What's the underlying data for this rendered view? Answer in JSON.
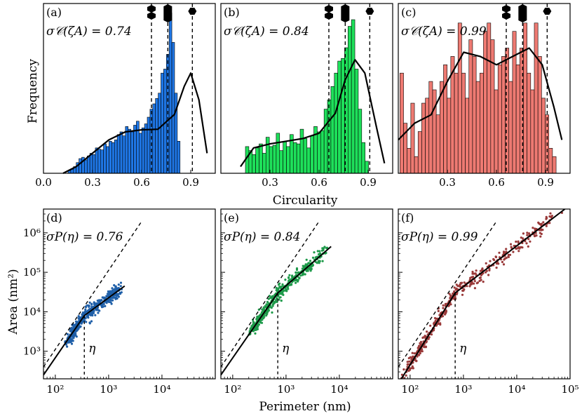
{
  "figure": {
    "xlabel_top": "Circularity",
    "ylabel_top": "Frequency",
    "xlabel_bottom": "Perimeter (nm)",
    "ylabel_bottom": "Area (nm²)",
    "shape_icons": [
      "triangle-icon",
      "square-icon",
      "hexagon-icon"
    ]
  },
  "chart_data": [
    {
      "type": "bar",
      "panel": "(a)",
      "annotation": "σ𝒞(ζA) = 0.74",
      "color": "#1f77e6",
      "xlim": [
        0.0,
        1.05
      ],
      "xticks": [
        "0.0",
        "0.3",
        "0.6",
        "0.9"
      ],
      "bin_start": 0.15,
      "bin_width": 0.0167,
      "values": [
        4,
        6,
        10,
        16,
        22,
        24,
        20,
        26,
        30,
        28,
        38,
        36,
        35,
        44,
        40,
        48,
        46,
        50,
        58,
        62,
        56,
        70,
        66,
        62,
        72,
        78,
        60,
        68,
        74,
        84,
        96,
        104,
        112,
        120,
        150,
        156,
        178,
        240,
        196,
        120,
        48
      ],
      "kde_x": [
        0.12,
        0.2,
        0.3,
        0.4,
        0.5,
        0.6,
        0.7,
        0.8,
        0.86,
        0.9,
        0.95,
        1.0
      ],
      "kde_y": [
        0,
        10,
        30,
        50,
        62,
        65,
        66,
        88,
        130,
        150,
        110,
        30
      ],
      "ymax": 250,
      "vlines": [
        0.66,
        0.76,
        0.91
      ]
    },
    {
      "type": "bar",
      "panel": "(b)",
      "annotation": "σ𝒞(ζA) = 0.84",
      "color": "#1ee05a",
      "xlim": [
        0.0,
        1.05
      ],
      "xticks": [
        "0.3",
        "0.6",
        "0.9"
      ],
      "bin_start": 0.15,
      "bin_width": 0.0209,
      "values": [
        40,
        34,
        28,
        38,
        44,
        30,
        54,
        40,
        42,
        60,
        34,
        48,
        40,
        58,
        46,
        44,
        66,
        52,
        38,
        56,
        70,
        62,
        64,
        96,
        110,
        130,
        150,
        168,
        172,
        188,
        220,
        230,
        156,
        96,
        46,
        18
      ],
      "kde_x": [
        0.12,
        0.2,
        0.3,
        0.4,
        0.5,
        0.6,
        0.7,
        0.76,
        0.82,
        0.88,
        0.95,
        1.0
      ],
      "kde_y": [
        10,
        38,
        44,
        48,
        52,
        60,
        90,
        140,
        170,
        150,
        70,
        15
      ],
      "ymax": 250,
      "vlines": [
        0.66,
        0.76,
        0.91
      ]
    },
    {
      "type": "bar",
      "panel": "(c)",
      "annotation": "σ𝒞(ζA) = 0.99",
      "color": "#ee7a72",
      "xlim": [
        0.0,
        1.05
      ],
      "xticks": [
        "0.3",
        "0.6",
        "0.9"
      ],
      "bin_start": 0.01,
      "bin_width": 0.0222,
      "values": [
        120,
        60,
        30,
        84,
        20,
        50,
        84,
        90,
        110,
        100,
        70,
        110,
        130,
        90,
        140,
        120,
        180,
        120,
        90,
        160,
        140,
        110,
        120,
        170,
        180,
        160,
        100,
        130,
        140,
        150,
        110,
        170,
        130,
        150,
        180,
        120,
        100,
        180,
        140,
        90,
        70,
        30,
        20
      ],
      "kde_x": [
        0.0,
        0.1,
        0.2,
        0.3,
        0.4,
        0.5,
        0.6,
        0.7,
        0.8,
        0.88,
        0.95,
        1.0
      ],
      "kde_y": [
        40,
        60,
        70,
        110,
        145,
        140,
        130,
        140,
        150,
        130,
        80,
        40
      ],
      "ymax": 200,
      "vlines": [
        0.66,
        0.76,
        0.91
      ]
    },
    {
      "type": "scatter",
      "panel": "(d)",
      "annotation": "σP(η) = 0.76",
      "color": "#1f5fa8",
      "eta_label": "η",
      "eta": 350,
      "xscale": "log",
      "yscale": "log",
      "xlim": [
        60,
        100000
      ],
      "ylim": [
        200,
        4000000
      ],
      "xticks": [
        "10²",
        "10³",
        "10⁴"
      ],
      "yticks": [
        "10³",
        "10⁴",
        "10⁵",
        "10⁶"
      ],
      "cloud_x": [
        150,
        2000
      ],
      "fit_line": [
        [
          60,
          250
        ],
        [
          350,
          8000
        ],
        [
          2000,
          45000
        ]
      ],
      "dashed_line": [
        [
          60,
          400
        ],
        [
          4000,
          1800000
        ]
      ]
    },
    {
      "type": "scatter",
      "panel": "(e)",
      "annotation": "σP(η) = 0.84",
      "color": "#1e9a4a",
      "eta_label": "η",
      "eta": 700,
      "xscale": "log",
      "yscale": "log",
      "xlim": [
        60,
        100000
      ],
      "ylim": [
        200,
        4000000
      ],
      "xticks": [
        "10²",
        "10³",
        "10⁴"
      ],
      "yticks": [],
      "cloud_x": [
        200,
        7000
      ],
      "fit_line": [
        [
          60,
          250
        ],
        [
          700,
          30000
        ],
        [
          7000,
          450000
        ]
      ],
      "dashed_line": [
        [
          60,
          400
        ],
        [
          4000,
          1800000
        ]
      ]
    },
    {
      "type": "scatter",
      "panel": "(f)",
      "annotation": "σP(η) = 0.99",
      "color": "#9a3a3a",
      "eta_label": "η",
      "eta": 700,
      "xscale": "log",
      "yscale": "log",
      "xlim": [
        60,
        100000
      ],
      "ylim": [
        200,
        4000000
      ],
      "xticks": [
        "10²",
        "10³",
        "10⁴",
        "10⁵"
      ],
      "yticks": [],
      "cloud_x": [
        60,
        80000
      ],
      "fit_line": [
        [
          60,
          150
        ],
        [
          700,
          30000
        ],
        [
          80000,
          4000000
        ]
      ],
      "dashed_line": [
        [
          60,
          400
        ],
        [
          4000,
          1800000
        ]
      ]
    }
  ]
}
